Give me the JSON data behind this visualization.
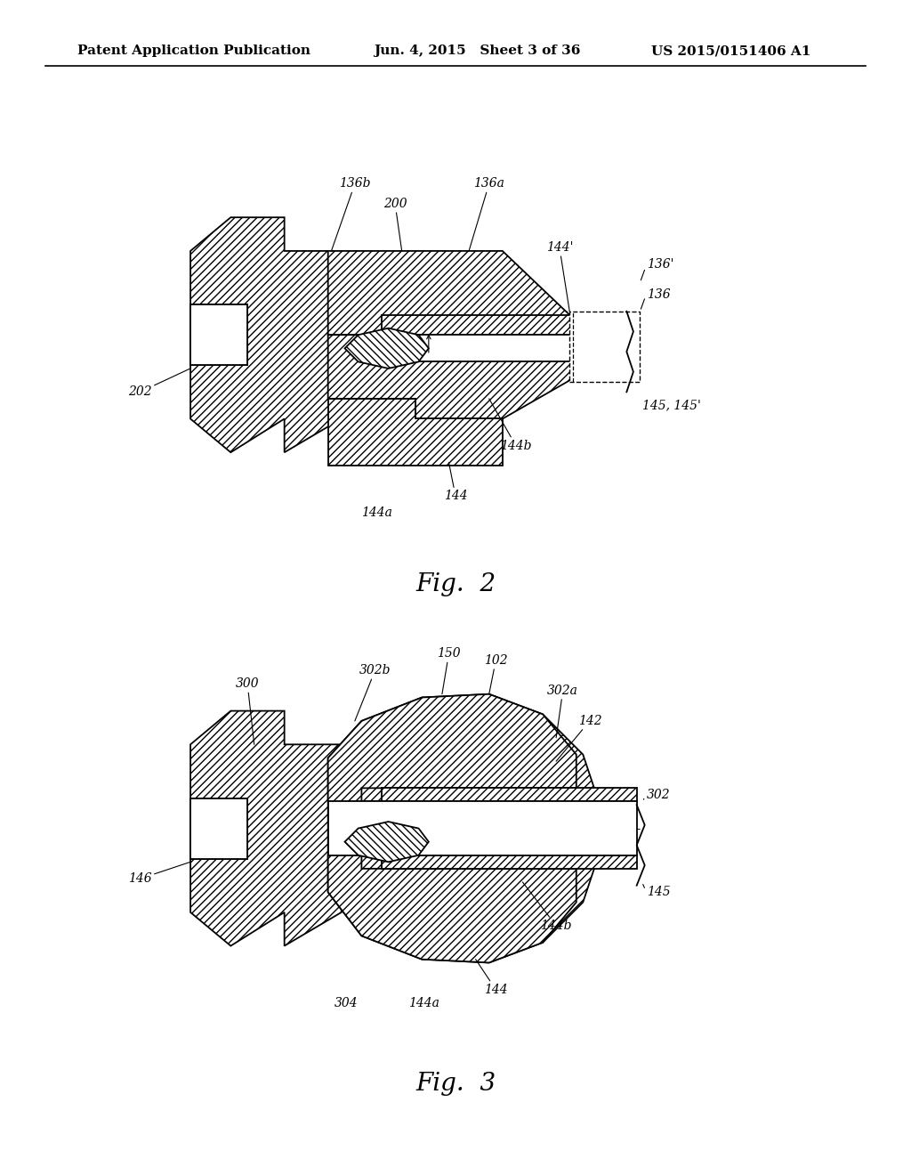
{
  "header_left": "Patent Application Publication",
  "header_mid": "Jun. 4, 2015   Sheet 3 of 36",
  "header_right": "US 2015/0151406 A1",
  "fig2_title": "Fig.  2",
  "fig3_title": "Fig.  3",
  "bg_color": "#ffffff",
  "header_fontsize": 11,
  "label_fontsize": 10,
  "title_fontsize": 20
}
